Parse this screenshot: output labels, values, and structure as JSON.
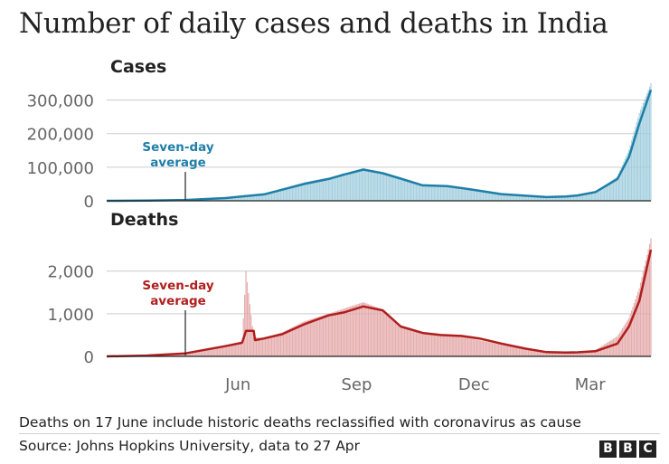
{
  "title": "Number of daily cases and deaths in India",
  "footnote": "Deaths on 17 June include historic deaths reclassified with coronavirus as cause",
  "source": "Source: Johns Hopkins University, data to 27 Apr",
  "logo": [
    "B",
    "B",
    "C"
  ],
  "colors": {
    "cases_line": "#1e7ea8",
    "cases_bar": "#9ccbdc",
    "deaths_line": "#b01e1e",
    "deaths_bar": "#e3a5a5",
    "axis": "#222222",
    "grid": "#cccccc",
    "text": "#222222",
    "tick": "#666666"
  },
  "chart_data": [
    {
      "type": "area",
      "title": "Cases",
      "x_type": "date",
      "x_range": [
        "2020-03-01",
        "2021-04-27"
      ],
      "x_ticks": [
        {
          "label": "Jun",
          "date": "2020-06-01"
        },
        {
          "label": "Sep",
          "date": "2020-09-01"
        },
        {
          "label": "Dec",
          "date": "2020-12-01"
        },
        {
          "label": "Mar",
          "date": "2021-03-01"
        }
      ],
      "y_ticks": [
        {
          "label": "0",
          "value": 0
        },
        {
          "label": "100,000",
          "value": 100000
        },
        {
          "label": "200,000",
          "value": 200000
        },
        {
          "label": "300,000",
          "value": 300000
        }
      ],
      "ylim": [
        0,
        350000
      ],
      "grid": true,
      "annotation": {
        "lines": [
          "Seven-day",
          "average"
        ],
        "date": "2020-05-01"
      },
      "series": [
        {
          "name": "Seven-day average",
          "kind": "line",
          "points": [
            [
              "2020-03-01",
              0
            ],
            [
              "2020-04-01",
              500
            ],
            [
              "2020-05-01",
              2500
            ],
            [
              "2020-06-01",
              8000
            ],
            [
              "2020-07-01",
              19000
            ],
            [
              "2020-08-01",
              50000
            ],
            [
              "2020-08-20",
              65000
            ],
            [
              "2020-09-01",
              78000
            ],
            [
              "2020-09-16",
              93000
            ],
            [
              "2020-10-01",
              82000
            ],
            [
              "2020-10-15",
              66000
            ],
            [
              "2020-11-01",
              46000
            ],
            [
              "2020-11-20",
              44000
            ],
            [
              "2020-12-01",
              38000
            ],
            [
              "2020-12-15",
              30000
            ],
            [
              "2021-01-01",
              20000
            ],
            [
              "2021-01-20",
              15000
            ],
            [
              "2021-02-05",
              11000
            ],
            [
              "2021-02-20",
              13000
            ],
            [
              "2021-03-01",
              16000
            ],
            [
              "2021-03-15",
              26000
            ],
            [
              "2021-04-01",
              65000
            ],
            [
              "2021-04-10",
              130000
            ],
            [
              "2021-04-18",
              230000
            ],
            [
              "2021-04-27",
              330000
            ]
          ]
        },
        {
          "name": "Daily cases",
          "kind": "bar",
          "points": [
            [
              "2020-03-01",
              0
            ],
            [
              "2020-04-01",
              600
            ],
            [
              "2020-05-01",
              3000
            ],
            [
              "2020-06-01",
              9000
            ],
            [
              "2020-07-01",
              21000
            ],
            [
              "2020-08-01",
              55000
            ],
            [
              "2020-08-20",
              69000
            ],
            [
              "2020-09-01",
              80000
            ],
            [
              "2020-09-16",
              97000
            ],
            [
              "2020-10-01",
              81000
            ],
            [
              "2020-10-15",
              64000
            ],
            [
              "2020-11-01",
              45000
            ],
            [
              "2020-11-20",
              45000
            ],
            [
              "2020-12-01",
              36000
            ],
            [
              "2020-12-15",
              27000
            ],
            [
              "2021-01-01",
              19000
            ],
            [
              "2021-01-20",
              14000
            ],
            [
              "2021-02-05",
              12000
            ],
            [
              "2021-02-20",
              14000
            ],
            [
              "2021-03-01",
              17000
            ],
            [
              "2021-03-15",
              28000
            ],
            [
              "2021-04-01",
              72000
            ],
            [
              "2021-04-10",
              152000
            ],
            [
              "2021-04-18",
              261000
            ],
            [
              "2021-04-27",
              350000
            ]
          ]
        }
      ]
    },
    {
      "type": "area",
      "title": "Deaths",
      "x_type": "date",
      "x_range": [
        "2020-03-01",
        "2021-04-27"
      ],
      "x_ticks": [
        {
          "label": "Jun",
          "date": "2020-06-01"
        },
        {
          "label": "Sep",
          "date": "2020-09-01"
        },
        {
          "label": "Dec",
          "date": "2020-12-01"
        },
        {
          "label": "Mar",
          "date": "2021-03-01"
        }
      ],
      "y_ticks": [
        {
          "label": "0",
          "value": 0
        },
        {
          "label": "1,000",
          "value": 1000
        },
        {
          "label": "2,000",
          "value": 2000
        }
      ],
      "ylim": [
        0,
        2800
      ],
      "grid": true,
      "annotation": {
        "lines": [
          "Seven-day",
          "average"
        ],
        "date": "2020-05-01"
      },
      "series": [
        {
          "name": "Seven-day average",
          "kind": "line",
          "points": [
            [
              "2020-03-01",
              0
            ],
            [
              "2020-04-01",
              20
            ],
            [
              "2020-05-01",
              70
            ],
            [
              "2020-06-01",
              240
            ],
            [
              "2020-06-14",
              320
            ],
            [
              "2020-06-17",
              600
            ],
            [
              "2020-06-23",
              600
            ],
            [
              "2020-06-24",
              380
            ],
            [
              "2020-07-01",
              420
            ],
            [
              "2020-07-15",
              520
            ],
            [
              "2020-08-01",
              750
            ],
            [
              "2020-08-20",
              960
            ],
            [
              "2020-09-01",
              1030
            ],
            [
              "2020-09-16",
              1170
            ],
            [
              "2020-10-01",
              1080
            ],
            [
              "2020-10-15",
              700
            ],
            [
              "2020-11-01",
              550
            ],
            [
              "2020-11-15",
              500
            ],
            [
              "2020-12-01",
              480
            ],
            [
              "2020-12-15",
              420
            ],
            [
              "2021-01-01",
              300
            ],
            [
              "2021-01-20",
              180
            ],
            [
              "2021-02-05",
              100
            ],
            [
              "2021-02-20",
              90
            ],
            [
              "2021-03-01",
              95
            ],
            [
              "2021-03-15",
              120
            ],
            [
              "2021-04-01",
              300
            ],
            [
              "2021-04-10",
              700
            ],
            [
              "2021-04-18",
              1300
            ],
            [
              "2021-04-27",
              2500
            ]
          ]
        },
        {
          "name": "Daily deaths",
          "kind": "bar",
          "points": [
            [
              "2020-03-01",
              0
            ],
            [
              "2020-04-01",
              25
            ],
            [
              "2020-05-01",
              80
            ],
            [
              "2020-06-01",
              260
            ],
            [
              "2020-06-14",
              330
            ],
            [
              "2020-06-17",
              2000
            ],
            [
              "2020-06-23",
              450
            ],
            [
              "2020-07-01",
              430
            ],
            [
              "2020-07-15",
              560
            ],
            [
              "2020-08-01",
              820
            ],
            [
              "2020-08-20",
              1000
            ],
            [
              "2020-09-01",
              1120
            ],
            [
              "2020-09-16",
              1270
            ],
            [
              "2020-10-01",
              1100
            ],
            [
              "2020-10-15",
              700
            ],
            [
              "2020-11-01",
              530
            ],
            [
              "2020-11-15",
              480
            ],
            [
              "2020-12-01",
              460
            ],
            [
              "2020-12-15",
              380
            ],
            [
              "2021-01-01",
              270
            ],
            [
              "2021-01-20",
              160
            ],
            [
              "2021-02-05",
              100
            ],
            [
              "2021-02-20",
              95
            ],
            [
              "2021-03-01",
              110
            ],
            [
              "2021-03-15",
              150
            ],
            [
              "2021-04-01",
              470
            ],
            [
              "2021-04-10",
              900
            ],
            [
              "2021-04-18",
              1600
            ],
            [
              "2021-04-27",
              2770
            ]
          ]
        }
      ]
    }
  ]
}
